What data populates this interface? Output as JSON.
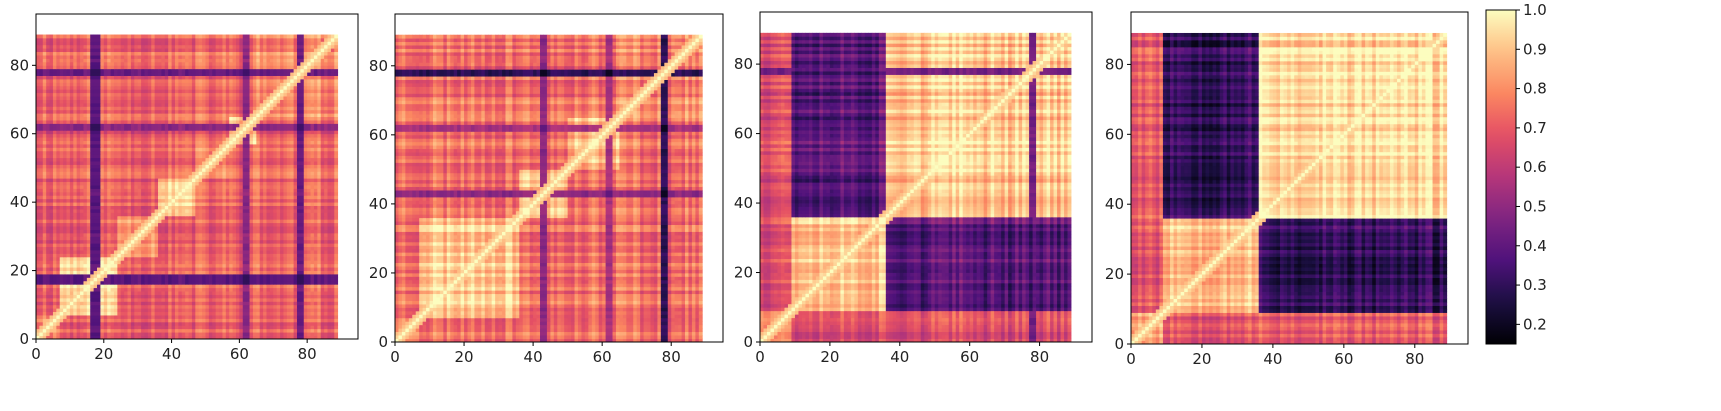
{
  "chart_data": {
    "type": "heatmap",
    "colormap": "magma",
    "grid": false,
    "colorbar": {
      "range": [
        0.15,
        1.0
      ],
      "ticks": [
        "1.0",
        "0.9",
        "0.8",
        "0.7",
        "0.6",
        "0.5",
        "0.4",
        "0.3",
        "0.2"
      ],
      "tick_values": [
        1.0,
        0.9,
        0.8,
        0.7,
        0.6,
        0.5,
        0.4,
        0.3,
        0.2
      ]
    },
    "panels": [
      {
        "matrix_size": 89,
        "xlim": [
          0,
          95
        ],
        "ylim": [
          0,
          95
        ],
        "xticks": [
          "0",
          "20",
          "40",
          "60",
          "80"
        ],
        "xtick_values": [
          0,
          20,
          40,
          60,
          80
        ],
        "yticks": [
          "0",
          "20",
          "40",
          "60",
          "80"
        ],
        "ytick_values": [
          0,
          20,
          40,
          60,
          80
        ],
        "base": 0.72,
        "seed": 11,
        "blocks": [
          {
            "range": [
              0,
              7
            ],
            "within": 0.82
          },
          {
            "range": [
              7,
              24
            ],
            "within": 0.93
          },
          {
            "range": [
              24,
              36
            ],
            "within": 0.86
          },
          {
            "range": [
              36,
              47
            ],
            "within": 0.93
          },
          {
            "range": [
              47,
              57
            ],
            "within": 0.76
          },
          {
            "range": [
              57,
              65
            ],
            "within": 0.9
          },
          {
            "range": [
              65,
              89
            ],
            "within": 0.78
          }
        ],
        "dark_bands": [
          {
            "index": 16,
            "width": 3,
            "value": 0.35
          },
          {
            "index": 77,
            "width": 2,
            "value": 0.38
          },
          {
            "index": 61,
            "width": 2,
            "value": 0.45
          }
        ]
      },
      {
        "matrix_size": 89,
        "xlim": [
          0,
          95
        ],
        "ylim": [
          0,
          95
        ],
        "xticks": [
          "0",
          "20",
          "40",
          "60",
          "80"
        ],
        "xtick_values": [
          0,
          20,
          40,
          60,
          80
        ],
        "yticks": [
          "0",
          "20",
          "40",
          "60",
          "80"
        ],
        "ytick_values": [
          0,
          20,
          40,
          60,
          80
        ],
        "base": 0.76,
        "seed": 23,
        "blocks": [
          {
            "range": [
              0,
              7
            ],
            "within": 0.85
          },
          {
            "range": [
              7,
              36
            ],
            "within": 0.93
          },
          {
            "range": [
              36,
              50
            ],
            "within": 0.92
          },
          {
            "range": [
              50,
              65
            ],
            "within": 0.9
          },
          {
            "range": [
              65,
              89
            ],
            "within": 0.8
          }
        ],
        "dark_bands": [
          {
            "index": 77,
            "width": 2,
            "value": 0.25
          },
          {
            "index": 42,
            "width": 2,
            "value": 0.45
          },
          {
            "index": 61,
            "width": 2,
            "value": 0.5
          }
        ]
      },
      {
        "matrix_size": 89,
        "xlim": [
          0,
          95
        ],
        "ylim": [
          0,
          95
        ],
        "xticks": [
          "0",
          "20",
          "40",
          "60",
          "80"
        ],
        "xtick_values": [
          0,
          20,
          40,
          60,
          80
        ],
        "yticks": [
          "0",
          "20",
          "40",
          "60",
          "80"
        ],
        "ytick_values": [
          0,
          20,
          40,
          60,
          80
        ],
        "base": 0.7,
        "seed": 37,
        "blocks": [
          {
            "range": [
              0,
              9
            ],
            "within": 0.85
          },
          {
            "range": [
              9,
              36
            ],
            "within": 0.92
          },
          {
            "range": [
              36,
              89
            ],
            "within": 0.92
          }
        ],
        "cross": [
          {
            "a": [
              9,
              36
            ],
            "b": [
              36,
              89
            ],
            "value": 0.4
          }
        ],
        "dark_bands": [
          {
            "index": 77,
            "width": 2,
            "value": 0.4
          }
        ]
      },
      {
        "matrix_size": 89,
        "xlim": [
          0,
          95
        ],
        "ylim": [
          0,
          95
        ],
        "xticks": [
          "0",
          "20",
          "40",
          "60",
          "80"
        ],
        "xtick_values": [
          0,
          20,
          40,
          60,
          80
        ],
        "yticks": [
          "0",
          "20",
          "40",
          "60",
          "80"
        ],
        "ytick_values": [
          0,
          20,
          40,
          60,
          80
        ],
        "base": 0.72,
        "seed": 53,
        "blocks": [
          {
            "range": [
              0,
              9
            ],
            "within": 0.88
          },
          {
            "range": [
              9,
              36
            ],
            "within": 0.92
          },
          {
            "range": [
              36,
              89
            ],
            "within": 0.94
          }
        ],
        "cross": [
          {
            "a": [
              9,
              36
            ],
            "b": [
              36,
              89
            ],
            "value": 0.32
          }
        ],
        "dark_bands": []
      }
    ]
  }
}
